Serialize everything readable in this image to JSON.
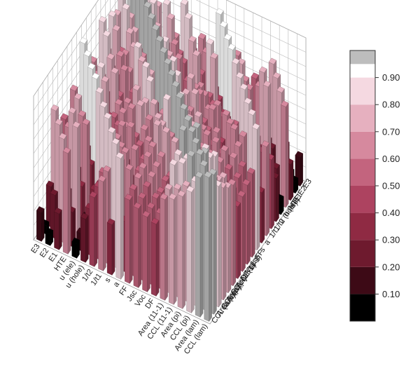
{
  "chart_data": {
    "type": "bar3d",
    "title": "",
    "x_categories": [
      "CCL (lam)",
      "Area (lam)",
      "CCL (pi)",
      "Area (pi)",
      "CCL (11-1)",
      "Area (11-1)",
      "DF",
      "Voc",
      "Jsc",
      "FF",
      "a",
      "s",
      "1/t1",
      "1/t2",
      "u (hole)",
      "u (ele)",
      "HTE",
      "E1",
      "E2",
      "E3"
    ],
    "y_categories": [
      "CCL (lam)",
      "Area (lam)",
      "CCL (pi)",
      "Area (pi)",
      "CCL (11-1)",
      "Area (11-1)",
      "DF",
      "Voc",
      "Jsc",
      "FF",
      "s",
      "a",
      "1/t1",
      "1/t2",
      "u (hole)",
      "u (ele)",
      "HTE",
      "E1",
      "E2",
      "E3"
    ],
    "zlim": [
      0,
      1
    ],
    "grid": true,
    "colorbar": {
      "placement": "right",
      "ticks": [
        "0.10",
        "0.20",
        "0.30",
        "0.40",
        "0.50",
        "0.60",
        "0.70",
        "0.80",
        "0.90"
      ],
      "bins": [
        {
          "min": 0.0,
          "max": 0.1,
          "color": "#000000"
        },
        {
          "min": 0.1,
          "max": 0.2,
          "color": "#3d0a16"
        },
        {
          "min": 0.2,
          "max": 0.3,
          "color": "#6e1a2e"
        },
        {
          "min": 0.3,
          "max": 0.4,
          "color": "#8f2a43"
        },
        {
          "min": 0.4,
          "max": 0.5,
          "color": "#ad4360"
        },
        {
          "min": 0.5,
          "max": 0.6,
          "color": "#c3647e"
        },
        {
          "min": 0.6,
          "max": 0.7,
          "color": "#d6899e"
        },
        {
          "min": 0.7,
          "max": 0.8,
          "color": "#e6b0bf"
        },
        {
          "min": 0.8,
          "max": 0.9,
          "color": "#f5d9e1"
        },
        {
          "min": 0.9,
          "max": 0.95,
          "color": "#ffffff"
        },
        {
          "min": 0.95,
          "max": 1.0,
          "color": "#bdbdbd"
        }
      ]
    },
    "matrix": [
      [
        1.0,
        0.97,
        0.84,
        0.78,
        0.73,
        0.7,
        0.5,
        0.52,
        0.55,
        0.58,
        0.84,
        0.35,
        0.62,
        0.48,
        0.3,
        0.1,
        0.7,
        0.25,
        0.08,
        0.2
      ],
      [
        0.97,
        1.0,
        0.86,
        0.8,
        0.75,
        0.72,
        0.52,
        0.53,
        0.57,
        0.6,
        0.35,
        0.86,
        0.64,
        0.5,
        0.32,
        0.12,
        0.24,
        0.72,
        0.3,
        0.06
      ],
      [
        0.84,
        0.86,
        1.0,
        0.96,
        0.88,
        0.84,
        0.58,
        0.55,
        0.6,
        0.63,
        0.66,
        0.68,
        0.86,
        0.55,
        0.4,
        0.18,
        0.78,
        0.3,
        0.74,
        0.28
      ],
      [
        0.78,
        0.8,
        0.96,
        1.0,
        0.86,
        0.86,
        0.56,
        0.54,
        0.62,
        0.65,
        0.45,
        0.7,
        0.5,
        0.88,
        0.38,
        0.16,
        0.32,
        0.8,
        0.27,
        0.76
      ],
      [
        0.73,
        0.75,
        0.88,
        0.86,
        1.0,
        0.98,
        0.62,
        0.57,
        0.64,
        0.68,
        0.55,
        0.47,
        0.66,
        0.6,
        0.88,
        0.2,
        0.7,
        0.35,
        0.62,
        0.28
      ],
      [
        0.7,
        0.72,
        0.84,
        0.86,
        0.98,
        1.0,
        0.6,
        0.55,
        0.66,
        0.7,
        0.58,
        0.62,
        0.5,
        0.64,
        0.42,
        0.9,
        0.37,
        0.68,
        0.32,
        0.6
      ],
      [
        0.5,
        0.52,
        0.58,
        0.56,
        0.62,
        0.6,
        1.0,
        0.74,
        0.78,
        0.8,
        0.66,
        0.6,
        0.7,
        0.68,
        0.55,
        0.48,
        0.92,
        0.4,
        0.72,
        0.35
      ],
      [
        0.52,
        0.53,
        0.55,
        0.54,
        0.57,
        0.55,
        0.74,
        1.0,
        0.7,
        0.75,
        0.48,
        0.66,
        0.58,
        0.62,
        0.6,
        0.52,
        0.44,
        0.91,
        0.38,
        0.7
      ],
      [
        0.55,
        0.57,
        0.6,
        0.62,
        0.64,
        0.66,
        0.78,
        0.7,
        1.0,
        0.88,
        0.72,
        0.68,
        0.75,
        0.7,
        0.64,
        0.58,
        0.8,
        0.46,
        0.92,
        0.42
      ],
      [
        0.58,
        0.6,
        0.63,
        0.65,
        0.68,
        0.7,
        0.8,
        0.75,
        0.88,
        1.0,
        0.7,
        0.74,
        0.72,
        0.78,
        0.66,
        0.62,
        0.5,
        0.82,
        0.45,
        0.93
      ],
      [
        0.84,
        0.35,
        0.66,
        0.45,
        0.55,
        0.58,
        0.66,
        0.48,
        0.72,
        0.7,
        1.0,
        0.55,
        0.82,
        0.6,
        0.5,
        0.4,
        0.76,
        0.58,
        0.68,
        0.52
      ],
      [
        0.35,
        0.86,
        0.68,
        0.7,
        0.47,
        0.62,
        0.6,
        0.66,
        0.68,
        0.74,
        0.55,
        1.0,
        0.6,
        0.84,
        0.52,
        0.45,
        0.55,
        0.78,
        0.62,
        0.7
      ],
      [
        0.62,
        0.64,
        0.86,
        0.5,
        0.66,
        0.5,
        0.7,
        0.58,
        0.75,
        0.72,
        0.82,
        0.6,
        1.0,
        0.74,
        0.8,
        0.55,
        0.68,
        0.6,
        0.86,
        0.58
      ],
      [
        0.48,
        0.5,
        0.55,
        0.88,
        0.6,
        0.64,
        0.68,
        0.62,
        0.7,
        0.78,
        0.6,
        0.84,
        0.74,
        1.0,
        0.56,
        0.82,
        0.62,
        0.7,
        0.58,
        0.88
      ],
      [
        0.3,
        0.32,
        0.4,
        0.38,
        0.88,
        0.42,
        0.55,
        0.6,
        0.64,
        0.66,
        0.5,
        0.52,
        0.8,
        0.56,
        1.0,
        0.7,
        0.74,
        0.66,
        0.8,
        0.62
      ],
      [
        0.1,
        0.12,
        0.18,
        0.16,
        0.2,
        0.9,
        0.48,
        0.52,
        0.58,
        0.62,
        0.4,
        0.45,
        0.55,
        0.82,
        0.7,
        1.0,
        0.66,
        0.76,
        0.6,
        0.82
      ],
      [
        0.7,
        0.24,
        0.78,
        0.32,
        0.7,
        0.37,
        0.92,
        0.44,
        0.8,
        0.5,
        0.76,
        0.55,
        0.68,
        0.62,
        0.74,
        0.66,
        1.0,
        0.72,
        0.85,
        0.78
      ],
      [
        0.25,
        0.72,
        0.3,
        0.8,
        0.35,
        0.68,
        0.4,
        0.91,
        0.46,
        0.82,
        0.58,
        0.78,
        0.6,
        0.7,
        0.66,
        0.76,
        0.72,
        1.0,
        0.74,
        0.88
      ],
      [
        0.08,
        0.3,
        0.74,
        0.27,
        0.62,
        0.32,
        0.72,
        0.38,
        0.92,
        0.45,
        0.68,
        0.62,
        0.86,
        0.58,
        0.8,
        0.6,
        0.85,
        0.74,
        1.0,
        0.94
      ],
      [
        0.2,
        0.06,
        0.28,
        0.76,
        0.28,
        0.6,
        0.35,
        0.7,
        0.42,
        0.93,
        0.52,
        0.7,
        0.58,
        0.88,
        0.62,
        0.82,
        0.78,
        0.88,
        0.94,
        1.0
      ]
    ]
  }
}
